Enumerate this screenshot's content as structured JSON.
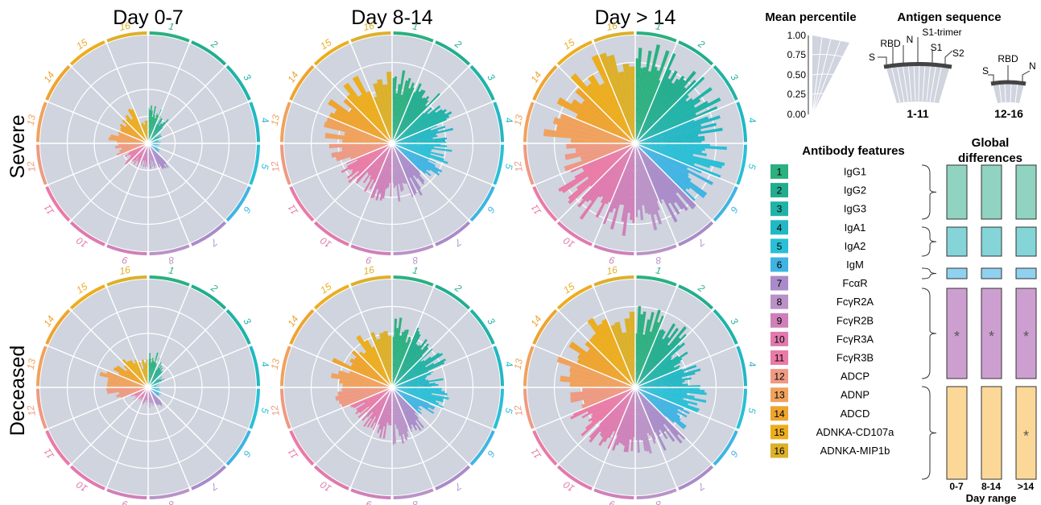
{
  "colors": {
    "panel_bg": "#cfd4de",
    "grid": "#ffffff",
    "groups": [
      "#2bb07f",
      "#22ad8e",
      "#1fb3a7",
      "#22b7c4",
      "#29bfd6",
      "#3fb4e3",
      "#a98bc9",
      "#ba92c7",
      "#cf80b9",
      "#e07aae",
      "#ea7aa6",
      "#ee9a82",
      "#f0a25d",
      "#eea42f",
      "#ecad1f",
      "#dcb02a"
    ],
    "diff_ig": "#8fd3c0",
    "diff_iga": "#84d4d8",
    "diff_igm": "#8fd1ee",
    "diff_fc": "#cd9fd0",
    "diff_func": "#fcd898"
  },
  "chart_data": {
    "type": "radial-bar",
    "columns": [
      "Day 0-7",
      "Day 8-14",
      "Day > 14"
    ],
    "rows": [
      "Severe",
      "Deceased"
    ],
    "group_labels": [
      "1",
      "2",
      "3",
      "4",
      "5",
      "6",
      "7",
      "8",
      "9",
      "10",
      "11",
      "12",
      "13",
      "14",
      "15",
      "16"
    ],
    "bars_per_group": [
      11,
      11,
      11,
      11,
      11,
      11,
      11,
      11,
      11,
      11,
      11,
      5,
      5,
      5,
      5,
      5
    ],
    "mean_percentile": {
      "Severe": {
        "Day 0-7": [
          0.3,
          0.24,
          0.12,
          0.1,
          0.09,
          0.11,
          0.25,
          0.2,
          0.2,
          0.2,
          0.24,
          0.3,
          0.35,
          0.3,
          0.33,
          0.22
        ],
        "Day 8-14": [
          0.58,
          0.55,
          0.52,
          0.48,
          0.47,
          0.44,
          0.46,
          0.45,
          0.46,
          0.45,
          0.45,
          0.5,
          0.55,
          0.58,
          0.6,
          0.56
        ],
        "Day > 14": [
          0.8,
          0.78,
          0.74,
          0.72,
          0.7,
          0.67,
          0.72,
          0.72,
          0.73,
          0.71,
          0.69,
          0.66,
          0.7,
          0.74,
          0.78,
          0.74
        ]
      },
      "Deceased": {
        "Day 0-7": [
          0.28,
          0.22,
          0.14,
          0.09,
          0.1,
          0.12,
          0.18,
          0.17,
          0.14,
          0.12,
          0.15,
          0.32,
          0.44,
          0.31,
          0.29,
          0.22
        ],
        "Day 8-14": [
          0.54,
          0.52,
          0.46,
          0.4,
          0.44,
          0.38,
          0.4,
          0.44,
          0.4,
          0.37,
          0.35,
          0.46,
          0.52,
          0.54,
          0.52,
          0.5
        ],
        "Day > 14": [
          0.62,
          0.62,
          0.52,
          0.52,
          0.55,
          0.5,
          0.55,
          0.54,
          0.56,
          0.56,
          0.56,
          0.6,
          0.68,
          0.7,
          0.65,
          0.6
        ]
      }
    },
    "mean_percentile_axis": {
      "label": "Mean percentile",
      "ticks": [
        "1.00",
        "0.75",
        "0.50",
        "0.25",
        "0.00"
      ],
      "range": [
        0,
        1
      ]
    },
    "antigen_sequence": {
      "title": "Antigen sequence",
      "groups_1_11": {
        "label": "1-11",
        "antigens": [
          "S",
          "RBD",
          "N",
          "S1-trimer",
          "S1",
          "S2"
        ]
      },
      "groups_12_16": {
        "label": "12-16",
        "antigens": [
          "S",
          "RBD",
          "N"
        ]
      }
    },
    "antibody_features": {
      "title": "Antibody features",
      "items": [
        {
          "num": "1",
          "name": "IgG1"
        },
        {
          "num": "2",
          "name": "IgG2"
        },
        {
          "num": "3",
          "name": "IgG3"
        },
        {
          "num": "4",
          "name": "IgA1"
        },
        {
          "num": "5",
          "name": "IgA2"
        },
        {
          "num": "6",
          "name": "IgM"
        },
        {
          "num": "7",
          "name": "FcαR"
        },
        {
          "num": "8",
          "name": "FcγR2A"
        },
        {
          "num": "9",
          "name": "FcγR2B"
        },
        {
          "num": "10",
          "name": "FcγR3A"
        },
        {
          "num": "11",
          "name": "FcγR3B"
        },
        {
          "num": "12",
          "name": "ADCP"
        },
        {
          "num": "13",
          "name": "ADNP"
        },
        {
          "num": "14",
          "name": "ADCD"
        },
        {
          "num": "15",
          "name": "ADNKA-CD107a"
        },
        {
          "num": "16",
          "name": "ADNKA-MIP1b"
        }
      ]
    },
    "global_differences": {
      "title_line1": "Global",
      "title_line2": "differences",
      "day_ranges": [
        "0-7",
        "8-14",
        ">14"
      ],
      "xlabel": "Day range",
      "significance_marker": "*",
      "blocks": [
        {
          "features": "1-3",
          "significant": [
            false,
            false,
            false
          ]
        },
        {
          "features": "4-5",
          "significant": [
            false,
            false,
            false
          ]
        },
        {
          "features": "6",
          "significant": [
            false,
            false,
            false
          ]
        },
        {
          "features": "7-11",
          "significant": [
            true,
            true,
            true
          ]
        },
        {
          "features": "12-16",
          "significant": [
            false,
            false,
            true
          ]
        }
      ]
    }
  }
}
